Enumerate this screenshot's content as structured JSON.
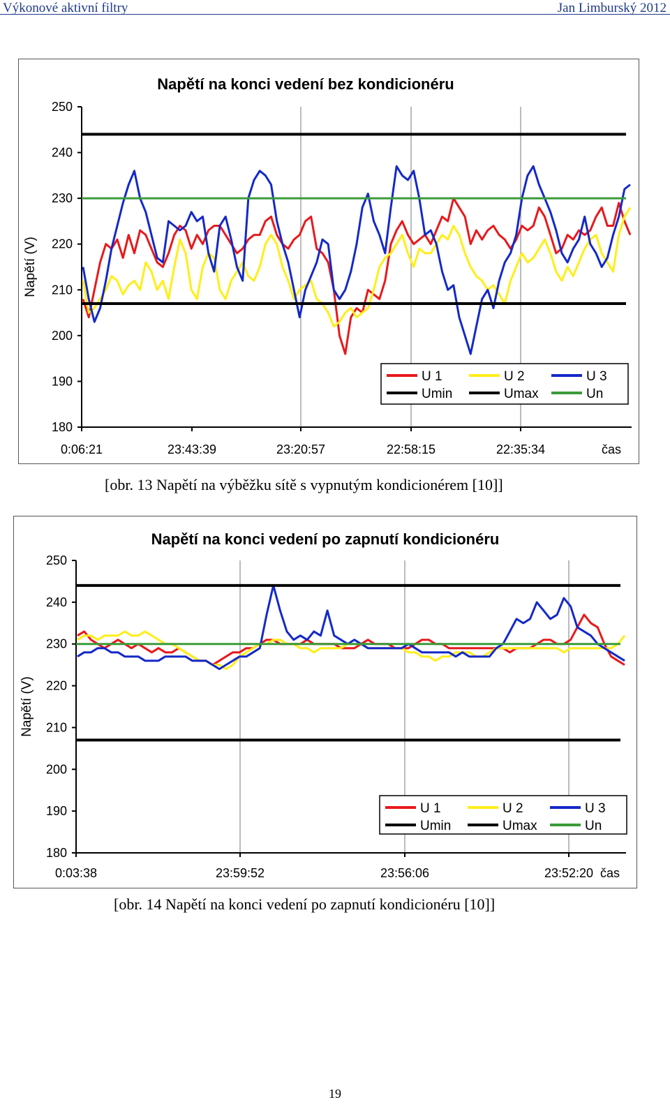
{
  "header": {
    "left": "Výkonové aktivní filtry",
    "right": "Jan Limburský 2012"
  },
  "figures": [
    {
      "caption": "[obr. 13 Napětí na výběžku sítě s vypnutým kondicionérem [10]]"
    },
    {
      "caption": "[obr. 14 Napětí na konci vedení po zapnutí kondicionéru [10]]"
    }
  ],
  "page_number": "19",
  "colors": {
    "U1": "#e8191b",
    "U2": "#ffee1a",
    "U3": "#1429c8",
    "limits": "#000000",
    "Un": "#3a9b3a"
  },
  "chart_data": [
    {
      "type": "line",
      "title": "Napětí na konci vedení bez kondicionéru",
      "ylabel": "Napětí (V)",
      "xlabel": "čas",
      "ylim": [
        180,
        250
      ],
      "yticks": [
        "250",
        "240",
        "230",
        "220",
        "210",
        "200",
        "190",
        "180"
      ],
      "xticks": [
        "0:06:21",
        "23:43:39",
        "23:20:57",
        "22:58:15",
        "22:35:34"
      ],
      "grid": "vertical",
      "legend_position": "bottom-right",
      "legend": [
        "U 1",
        "U 2",
        "U 3",
        "Umin",
        "Umax",
        "Un"
      ],
      "reference_lines": [
        {
          "name": "Umax",
          "value": 244
        },
        {
          "name": "Un",
          "value": 230
        },
        {
          "name": "Umin",
          "value": 207
        }
      ],
      "series": [
        {
          "name": "U 1",
          "values": [
            208,
            204,
            210,
            216,
            220,
            219,
            221,
            217,
            222,
            218,
            223,
            222,
            219,
            216,
            215,
            218,
            222,
            224,
            223,
            219,
            222,
            220,
            223,
            224,
            224,
            222,
            220,
            218,
            219,
            221,
            222,
            222,
            225,
            226,
            222,
            220,
            219,
            221,
            222,
            225,
            226,
            219,
            218,
            216,
            210,
            200,
            196,
            204,
            206,
            205,
            210,
            209,
            208,
            212,
            220,
            223,
            225,
            222,
            220,
            221,
            222,
            220,
            223,
            226,
            225,
            230,
            228,
            226,
            220,
            223,
            221,
            223,
            224,
            222,
            221,
            219,
            221,
            224,
            223,
            224,
            228,
            226,
            222,
            218,
            219,
            222,
            221,
            223,
            222,
            223,
            226,
            228,
            224,
            224,
            229,
            225,
            222
          ]
        },
        {
          "name": "U 2",
          "values": [
            212,
            205,
            206,
            208,
            210,
            213,
            212,
            209,
            211,
            212,
            210,
            216,
            214,
            210,
            212,
            208,
            215,
            221,
            218,
            210,
            208,
            215,
            218,
            217,
            210,
            208,
            212,
            214,
            216,
            213,
            212,
            215,
            220,
            222,
            220,
            215,
            212,
            208,
            210,
            211,
            212,
            208,
            207,
            205,
            202,
            203,
            205,
            206,
            204,
            205,
            206,
            210,
            215,
            217,
            218,
            220,
            222,
            218,
            215,
            219,
            218,
            218,
            220,
            222,
            221,
            224,
            222,
            218,
            215,
            213,
            212,
            210,
            211,
            209,
            207,
            212,
            215,
            218,
            216,
            217,
            219,
            221,
            218,
            214,
            212,
            215,
            213,
            216,
            219,
            221,
            222,
            218,
            216,
            214,
            222,
            226,
            228
          ]
        },
        {
          "name": "U 3",
          "values": [
            215,
            208,
            203,
            206,
            212,
            219,
            224,
            229,
            233,
            236,
            230,
            227,
            222,
            217,
            216,
            225,
            224,
            223,
            224,
            227,
            225,
            226,
            218,
            214,
            224,
            226,
            221,
            215,
            212,
            230,
            234,
            236,
            235,
            233,
            225,
            220,
            216,
            210,
            204,
            210,
            213,
            216,
            221,
            220,
            210,
            208,
            210,
            214,
            220,
            228,
            231,
            225,
            222,
            218,
            228,
            237,
            235,
            234,
            236,
            230,
            222,
            223,
            220,
            214,
            210,
            211,
            204,
            200,
            196,
            202,
            208,
            210,
            206,
            212,
            216,
            218,
            222,
            230,
            235,
            237,
            233,
            230,
            227,
            223,
            218,
            216,
            219,
            221,
            226,
            220,
            218,
            215,
            217,
            222,
            226,
            232,
            233
          ]
        }
      ]
    },
    {
      "type": "line",
      "title": "Napětí na konci vedení po zapnutí kondicionéru",
      "ylabel": "Napětí (V)",
      "xlabel": "čas",
      "ylim": [
        180,
        250
      ],
      "yticks": [
        "250",
        "240",
        "230",
        "220",
        "210",
        "200",
        "190",
        "180"
      ],
      "xticks": [
        "0:03:38",
        "23:59:52",
        "23:56:06",
        "23:52:20"
      ],
      "grid": "vertical",
      "legend_position": "bottom-right",
      "legend": [
        "U 1",
        "U 2",
        "U 3",
        "Umin",
        "Umax",
        "Un"
      ],
      "reference_lines": [
        {
          "name": "Umax",
          "value": 244
        },
        {
          "name": "Un",
          "value": 230
        },
        {
          "name": "Umin",
          "value": 207
        }
      ],
      "series": [
        {
          "name": "U 1",
          "values": [
            232,
            233,
            231,
            230,
            229,
            230,
            231,
            230,
            229,
            230,
            229,
            228,
            229,
            228,
            228,
            229,
            228,
            227,
            226,
            226,
            225,
            226,
            227,
            228,
            228,
            229,
            229,
            230,
            231,
            231,
            230,
            230,
            230,
            230,
            231,
            230,
            230,
            230,
            230,
            229,
            229,
            229,
            230,
            231,
            230,
            230,
            230,
            229,
            229,
            229,
            230,
            231,
            231,
            230,
            230,
            229,
            229,
            229,
            229,
            229,
            229,
            229,
            229,
            229,
            228,
            229,
            229,
            229,
            230,
            231,
            231,
            230,
            230,
            231,
            234,
            237,
            235,
            234,
            230,
            227,
            226,
            225
          ]
        },
        {
          "name": "U 2",
          "values": [
            231,
            232,
            232,
            231,
            232,
            232,
            232,
            233,
            232,
            232,
            233,
            232,
            231,
            230,
            230,
            229,
            228,
            227,
            226,
            226,
            225,
            225,
            224,
            225,
            227,
            228,
            229,
            230,
            230,
            231,
            231,
            230,
            230,
            229,
            229,
            228,
            229,
            229,
            229,
            229,
            230,
            230,
            230,
            229,
            229,
            229,
            229,
            229,
            229,
            228,
            228,
            227,
            227,
            226,
            227,
            227,
            228,
            228,
            228,
            227,
            227,
            228,
            229,
            229,
            229,
            229,
            229,
            229,
            229,
            229,
            229,
            229,
            228,
            229,
            229,
            229,
            229,
            229,
            229,
            229,
            230,
            232
          ]
        },
        {
          "name": "U 3",
          "values": [
            227,
            228,
            228,
            229,
            229,
            228,
            228,
            227,
            227,
            227,
            226,
            226,
            226,
            227,
            227,
            227,
            227,
            226,
            226,
            226,
            225,
            224,
            225,
            226,
            227,
            227,
            228,
            229,
            237,
            244,
            238,
            233,
            231,
            232,
            231,
            233,
            232,
            238,
            232,
            231,
            230,
            231,
            230,
            229,
            229,
            229,
            229,
            229,
            229,
            230,
            229,
            228,
            228,
            228,
            228,
            228,
            227,
            228,
            227,
            227,
            227,
            227,
            229,
            230,
            233,
            236,
            235,
            236,
            240,
            238,
            236,
            237,
            241,
            239,
            234,
            233,
            232,
            230,
            229,
            228,
            227,
            226
          ]
        }
      ]
    }
  ]
}
